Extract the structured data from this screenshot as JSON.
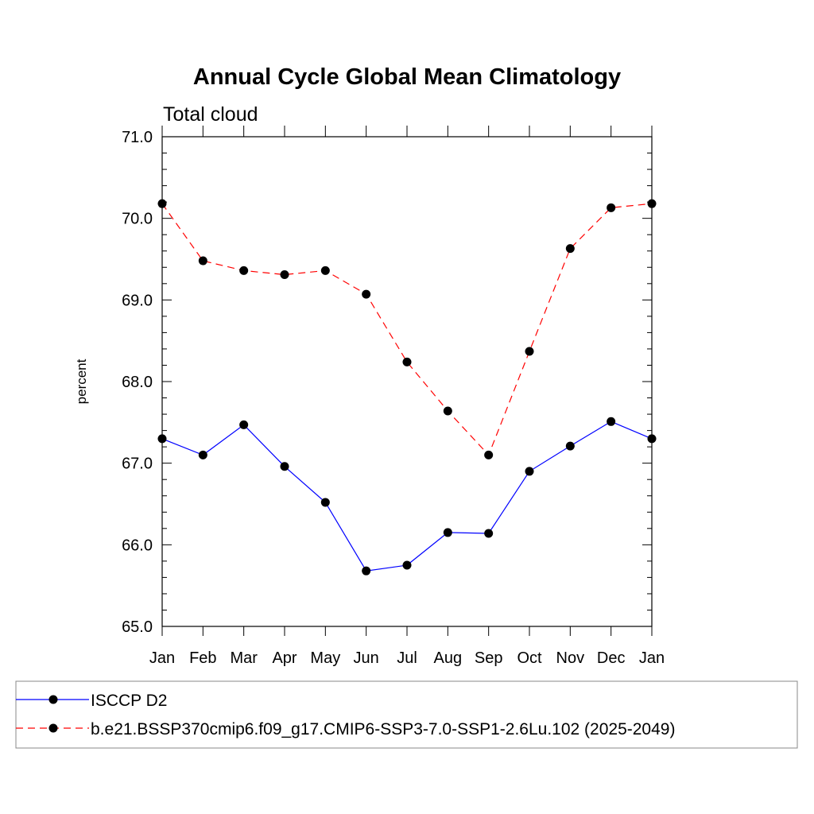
{
  "chart_data": {
    "type": "line",
    "title": "Annual Cycle Global Mean Climatology",
    "subtitle": "Total cloud",
    "xlabel": "",
    "ylabel": "percent",
    "categories": [
      "Jan",
      "Feb",
      "Mar",
      "Apr",
      "May",
      "Jun",
      "Jul",
      "Aug",
      "Sep",
      "Oct",
      "Nov",
      "Dec",
      "Jan"
    ],
    "ylim": [
      65.0,
      71.0
    ],
    "yticks": [
      {
        "value": 65.0,
        "label": "65.0"
      },
      {
        "value": 66.0,
        "label": "66.0"
      },
      {
        "value": 67.0,
        "label": "67.0"
      },
      {
        "value": 68.0,
        "label": "68.0"
      },
      {
        "value": 69.0,
        "label": "69.0"
      },
      {
        "value": 70.0,
        "label": "70.0"
      },
      {
        "value": 71.0,
        "label": "71.0"
      }
    ],
    "grid": false,
    "legend_position": "bottom",
    "series": [
      {
        "name": "ISCCP D2",
        "color": "#0000ff",
        "dash": "solid",
        "marker": "circle",
        "values": [
          67.3,
          67.1,
          67.47,
          66.96,
          66.52,
          65.68,
          65.75,
          66.15,
          66.14,
          66.9,
          67.21,
          67.51,
          67.3
        ]
      },
      {
        "name": "b.e21.BSSP370cmip6.f09_g17.CMIP6-SSP3-7.0-SSP1-2.6Lu.102 (2025-2049)",
        "color": "#ff0000",
        "dash": "dashed",
        "marker": "circle",
        "values": [
          70.18,
          69.48,
          69.36,
          69.31,
          69.36,
          69.07,
          68.24,
          67.64,
          67.1,
          68.37,
          69.63,
          70.13,
          70.18
        ]
      }
    ]
  }
}
